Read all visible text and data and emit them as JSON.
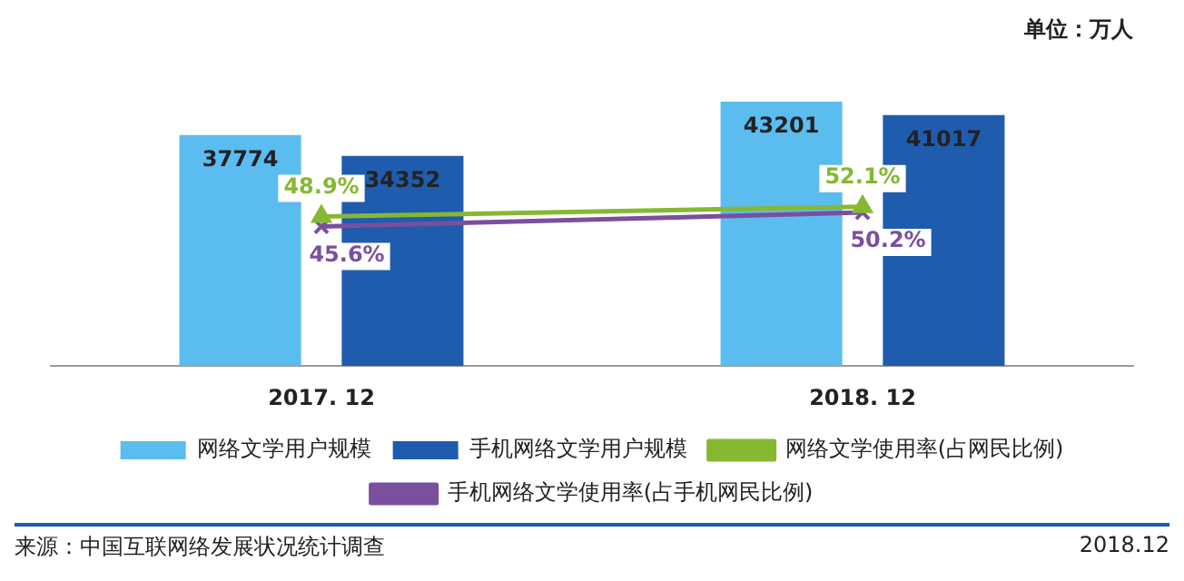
{
  "chart_data": {
    "type": "bar",
    "categories": [
      "2017. 12",
      "2018. 12"
    ],
    "series": [
      {
        "name": "网络文学用户规模",
        "color": "#5bbcf0",
        "values": [
          37774,
          43201
        ],
        "value_labels": [
          "37774",
          "43201"
        ]
      },
      {
        "name": "手机网络文学用户规模",
        "color": "#1f5cae",
        "values": [
          34352,
          41017
        ],
        "value_labels": [
          "34352",
          "41017"
        ]
      },
      {
        "name": "网络文学使用率(占网民比例)",
        "type": "line",
        "axis": "y2",
        "marker": "triangle",
        "color": "#86b832",
        "values": [
          48.9,
          52.1
        ],
        "value_labels": [
          "48.9%",
          "52.1%"
        ]
      },
      {
        "name": "手机网络文学使用率(占手机网民比例)",
        "type": "line",
        "axis": "y2",
        "marker": "cross",
        "color": "#7a4f9e",
        "values": [
          45.6,
          50.2
        ],
        "value_labels": [
          "45.6%",
          "50.2%"
        ]
      }
    ],
    "legend": "bottom",
    "grid": false,
    "tick_labels": "x",
    "annotations": [
      "单位：万人",
      "来源：中国互联网络发展状况统计调查",
      "2018.12"
    ]
  }
}
